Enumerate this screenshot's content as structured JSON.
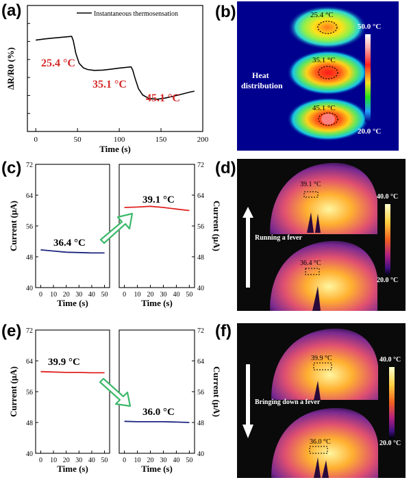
{
  "panel_labels": [
    "(a)",
    "(b)",
    "(c)",
    "(d)",
    "(e)",
    "(f)"
  ],
  "colors": {
    "annotation_red": "#d42a2a",
    "series_red": "#e02020",
    "series_blue": "#1a237e",
    "arrow_green": "#3cb86a",
    "thermal_bg": "#00008f",
    "dark_bg": "#0a0a0a"
  },
  "panel_b": {
    "text": "Heat\ndistribution",
    "spots": [
      "25.4 °C",
      "35.1 °C",
      "45.1 °C"
    ],
    "colorbar": {
      "max": "50.0 °C",
      "min": "20.0 °C"
    }
  },
  "panel_d": {
    "text": "Running a fever",
    "spots": [
      "39.1 °C",
      "36.4 °C"
    ],
    "colorbar": {
      "max": "40.0 °C",
      "min": "20.0 °C"
    },
    "arrow_direction": "up"
  },
  "panel_f": {
    "text": "Bringing down a fever",
    "spots": [
      "39.9 °C",
      "36.0 °C"
    ],
    "colorbar": {
      "max": "40.0 °C",
      "min": "20.0 °C"
    },
    "arrow_direction": "down"
  },
  "chart_data": [
    {
      "type": "line",
      "panel": "a",
      "xlabel": "Time (s)",
      "ylabel": "ΔR/R0 (%)",
      "xlim": [
        -10,
        200
      ],
      "xticks": [
        0,
        50,
        100,
        150,
        200
      ],
      "y_tick_labels_shown": false,
      "ylim": [
        0,
        100
      ],
      "legend": {
        "placement": "top-right",
        "entries": [
          "Instantaneous thermosensation"
        ]
      },
      "annotations": [
        "25.4 °C",
        "35.1 °C",
        "45.1 °C"
      ],
      "series": [
        {
          "name": "Instantaneous thermosensation",
          "x": [
            0,
            10,
            20,
            30,
            40,
            43,
            45,
            48,
            52,
            57,
            62,
            70,
            80,
            90,
            100,
            110,
            114,
            116,
            119,
            123,
            128,
            135,
            145,
            155,
            165,
            175,
            185,
            190
          ],
          "y": [
            72.5,
            73.4,
            74.1,
            74.7,
            75.3,
            75.5,
            72,
            62,
            54,
            50.5,
            49.2,
            48.5,
            48.7,
            49.4,
            50.3,
            51,
            51.3,
            49,
            42,
            34,
            29,
            26.3,
            25.5,
            26.5,
            28,
            29.6,
            31.3,
            32
          ]
        }
      ]
    },
    {
      "type": "line",
      "panel": "c",
      "xlabel": "Time (s)",
      "ylabel_left": "Current (μA)",
      "ylabel_right": "Current (μA)",
      "ylim": [
        40,
        72
      ],
      "yticks": [
        40,
        48,
        56,
        64,
        72
      ],
      "xticks": [
        0,
        10,
        20,
        30,
        40,
        50
      ],
      "subplots": [
        {
          "annotation": "36.4 °C",
          "xlim": [
            -4,
            54
          ],
          "series": [
            {
              "color": "#1a237e",
              "x": [
                0,
                10,
                20,
                30,
                40,
                50
              ],
              "y": [
                49.8,
                49.5,
                49.2,
                49.1,
                49.0,
                49.0
              ]
            }
          ]
        },
        {
          "annotation": "39.1 °C",
          "xlim": [
            -4,
            54
          ],
          "series": [
            {
              "color": "#e02020",
              "x": [
                0,
                10,
                20,
                30,
                40,
                50
              ],
              "y": [
                60.8,
                60.9,
                61.1,
                60.8,
                60.4,
                60.0
              ]
            }
          ]
        }
      ]
    },
    {
      "type": "line",
      "panel": "e",
      "xlabel": "Time (s)",
      "ylabel_left": "Current (μA)",
      "ylabel_right": "Current (μA)",
      "ylim": [
        40,
        72
      ],
      "yticks": [
        40,
        48,
        56,
        64,
        72
      ],
      "xticks": [
        0,
        10,
        20,
        30,
        40,
        50
      ],
      "subplots": [
        {
          "annotation": "39.9 °C",
          "xlim": [
            -4,
            54
          ],
          "series": [
            {
              "color": "#e02020",
              "x": [
                0,
                10,
                20,
                30,
                40,
                50
              ],
              "y": [
                61.2,
                61.1,
                61.0,
                61.0,
                60.9,
                60.9
              ]
            }
          ]
        },
        {
          "annotation": "36.0 °C",
          "xlim": [
            -4,
            54
          ],
          "series": [
            {
              "color": "#1a237e",
              "x": [
                0,
                10,
                20,
                30,
                40,
                50
              ],
              "y": [
                48.3,
                48.2,
                48.2,
                48.2,
                48.1,
                48.0
              ]
            }
          ]
        }
      ]
    }
  ]
}
